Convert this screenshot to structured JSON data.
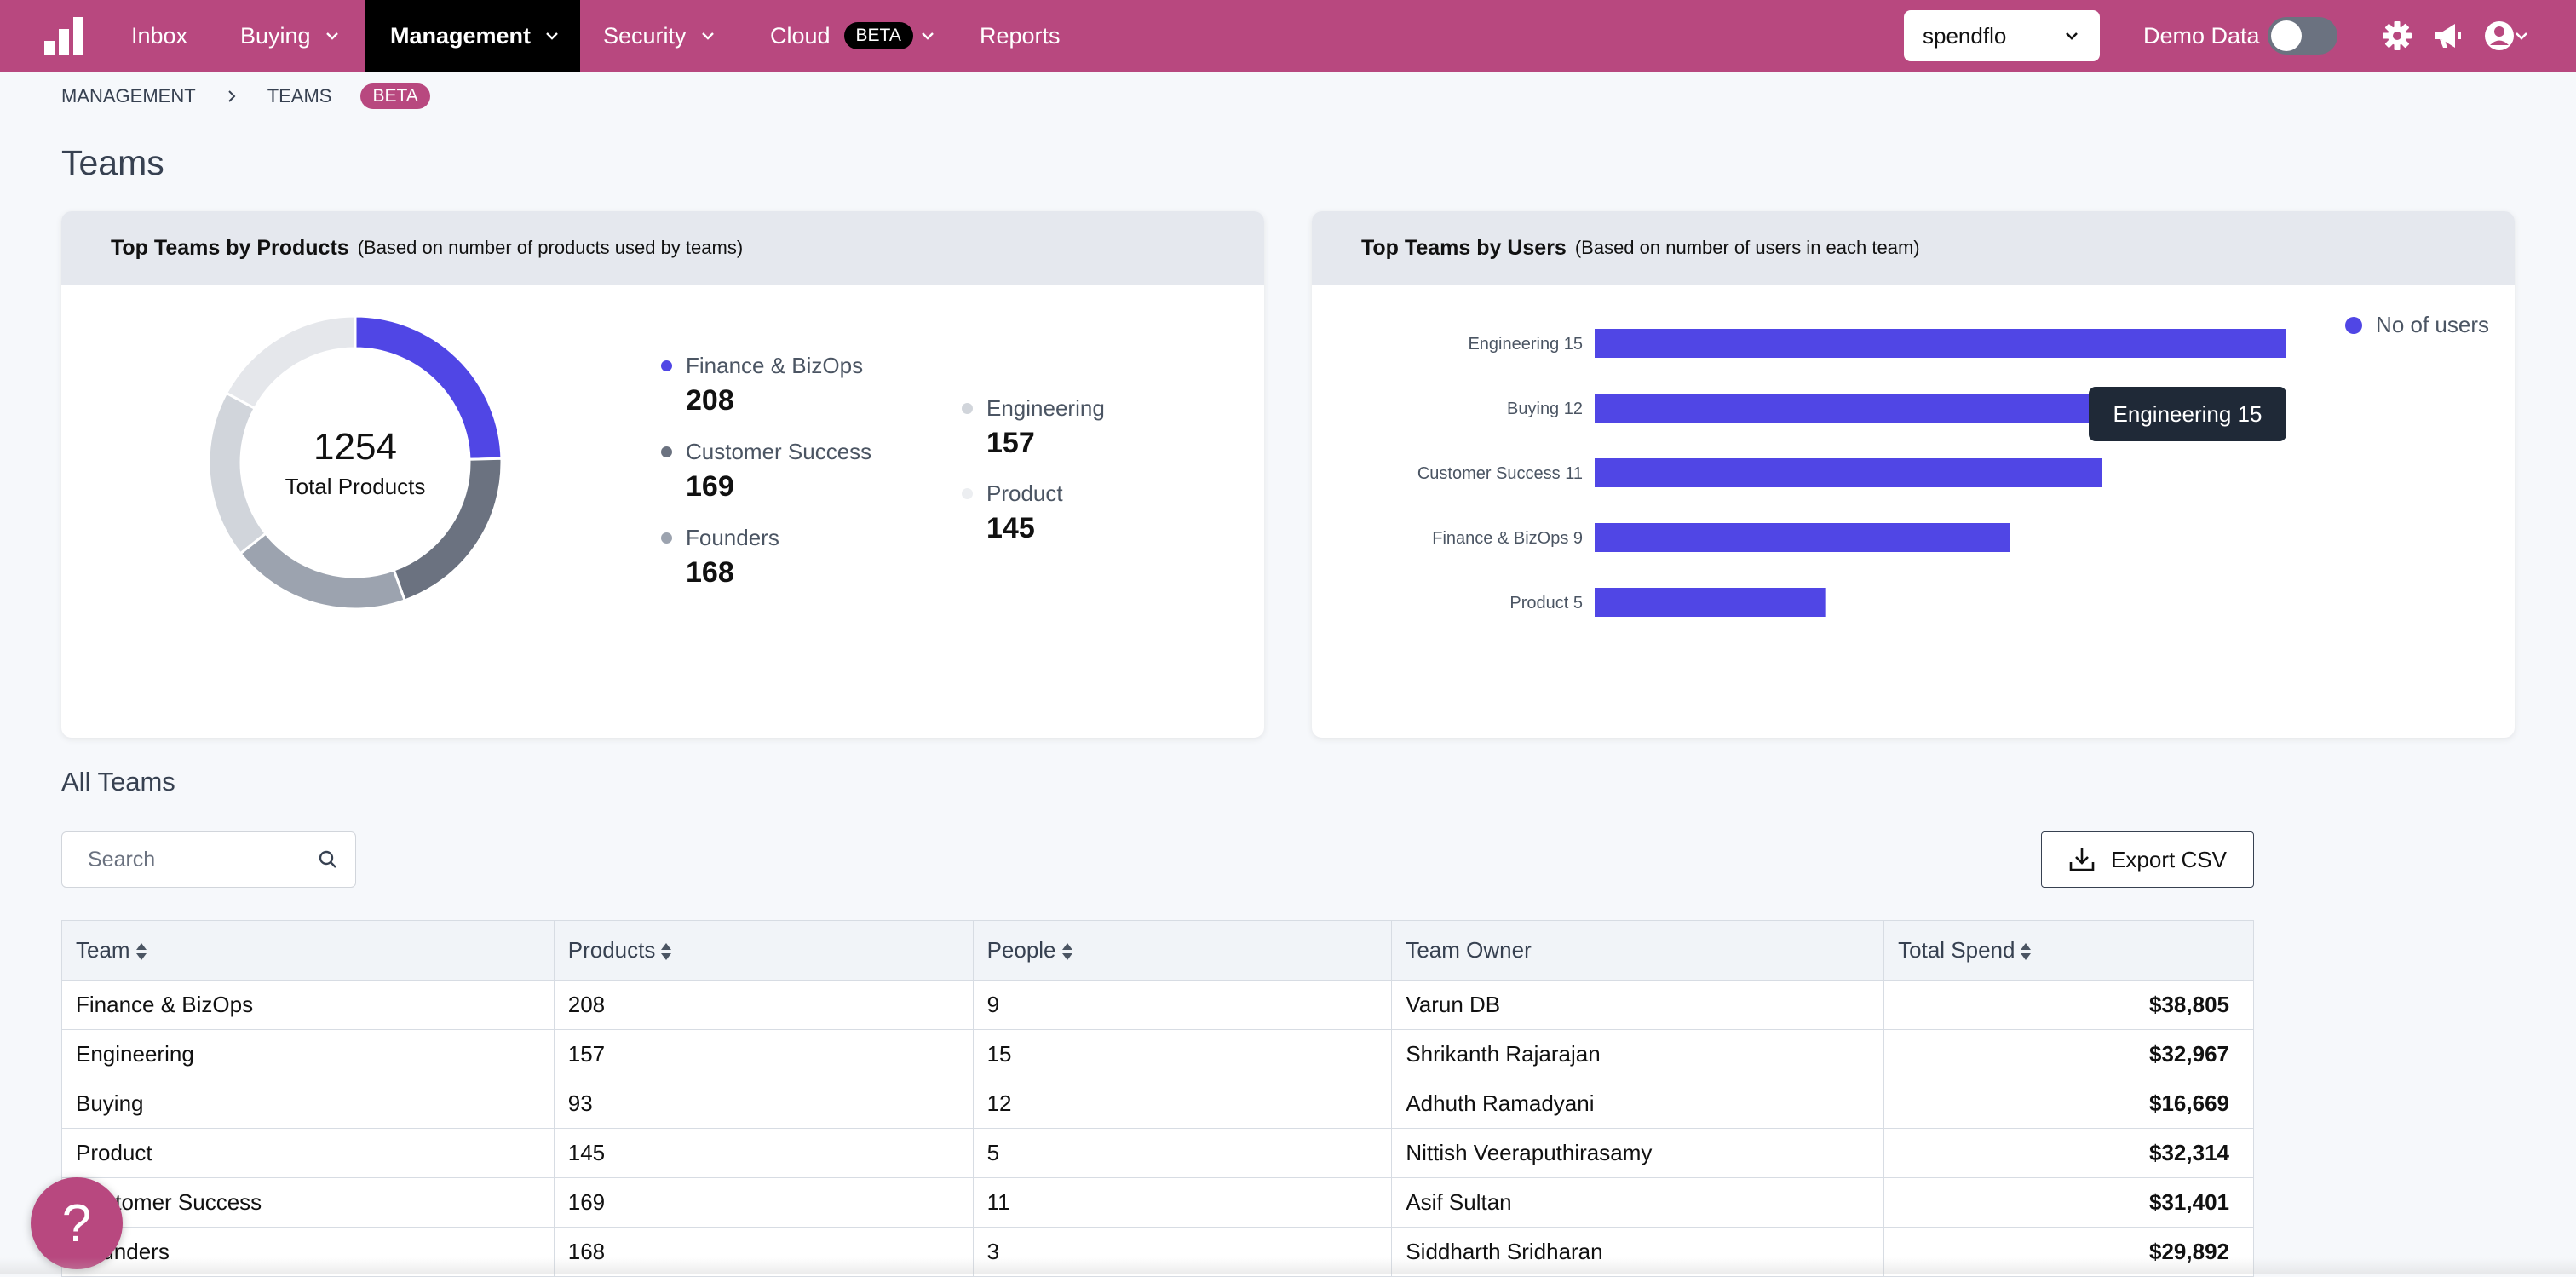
{
  "nav": {
    "items": [
      {
        "label": "Inbox",
        "dropdown": false
      },
      {
        "label": "Buying",
        "dropdown": true
      },
      {
        "label": "Management",
        "dropdown": true,
        "active": true
      },
      {
        "label": "Security",
        "dropdown": true
      },
      {
        "label": "Cloud",
        "dropdown": true,
        "badge": "BETA"
      },
      {
        "label": "Reports",
        "dropdown": false
      }
    ],
    "org_select": "spendflo",
    "demo_data_label": "Demo Data",
    "demo_data_on": false,
    "brand_color": "#b8487f"
  },
  "breadcrumb": {
    "items": [
      "MANAGEMENT",
      "TEAMS"
    ],
    "badge": "BETA"
  },
  "page_title": "Teams",
  "products_card": {
    "title": "Top Teams by Products",
    "subtitle": "(Based on number of products used by teams)",
    "total": "1254",
    "total_label": "Total Products",
    "legend": [
      {
        "name": "Finance & BizOps",
        "value": "208",
        "color": "#5046e5"
      },
      {
        "name": "Customer Success",
        "value": "169",
        "color": "#6b7280"
      },
      {
        "name": "Founders",
        "value": "168",
        "color": "#9ca3af"
      },
      {
        "name": "Engineering",
        "value": "157",
        "color": "#d1d5db"
      },
      {
        "name": "Product",
        "value": "145",
        "color": "#e5e7eb"
      }
    ]
  },
  "users_card": {
    "title": "Top Teams by Users",
    "subtitle": "(Based on number of users in each team)",
    "legend_label": "No of users",
    "tooltip": "Engineering 15"
  },
  "chart_data": {
    "type": "bar",
    "orientation": "horizontal",
    "categories": [
      "Engineering 15",
      "Buying 12",
      "Customer Success 11",
      "Finance & BizOps 9",
      "Product 5"
    ],
    "series": [
      {
        "name": "No of users",
        "values": [
          15,
          12,
          11,
          9,
          5
        ]
      }
    ],
    "color": "#5046e5",
    "legend_position": "top-right"
  },
  "all_teams": {
    "title": "All Teams",
    "search_placeholder": "Search",
    "export_label": "Export CSV",
    "columns": [
      "Team",
      "Products",
      "People",
      "Team Owner",
      "Total Spend"
    ],
    "rows": [
      [
        "Finance & BizOps",
        "208",
        "9",
        "Varun DB",
        "$38,805"
      ],
      [
        "Engineering",
        "157",
        "15",
        "Shrikanth Rajarajan",
        "$32,967"
      ],
      [
        "Buying",
        "93",
        "12",
        "Adhuth Ramadyani",
        "$16,669"
      ],
      [
        "Product",
        "145",
        "5",
        "Nittish Veeraputhirasamy",
        "$32,314"
      ],
      [
        "Customer Success",
        "169",
        "11",
        "Asif Sultan",
        "$31,401"
      ],
      [
        "Founders",
        "168",
        "3",
        "Siddharth Sridharan",
        "$29,892"
      ]
    ]
  },
  "help_label": "?"
}
